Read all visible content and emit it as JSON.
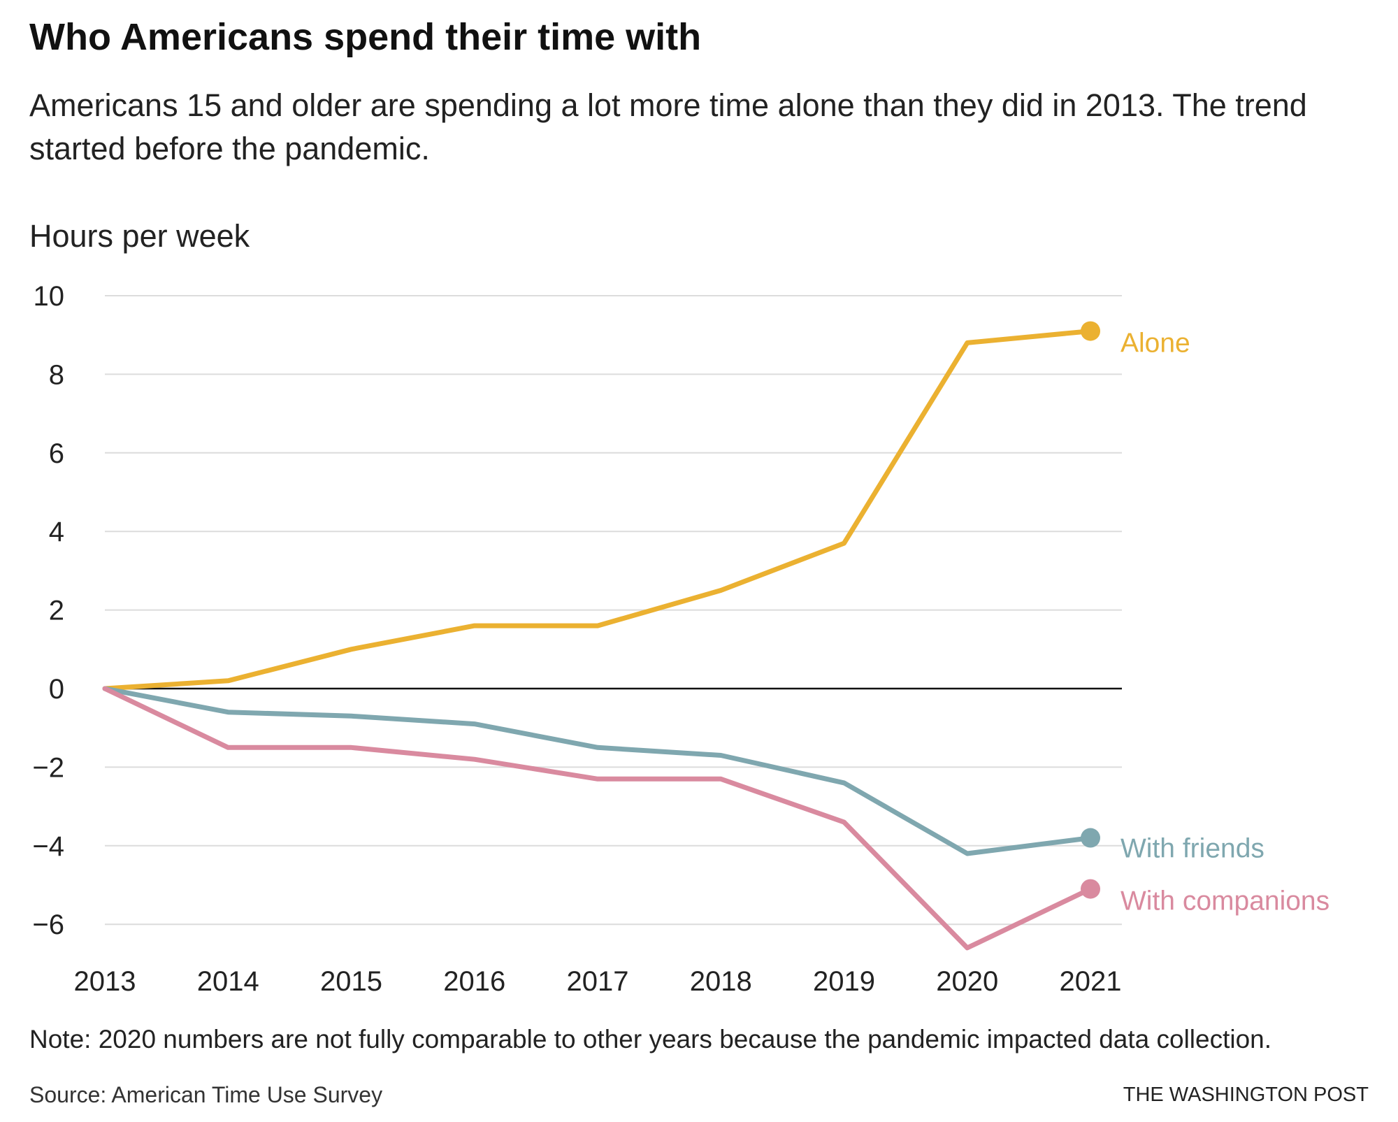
{
  "header": {
    "title": "Who Americans spend their time with",
    "subtitle": "Americans 15 and older are spending a lot more time alone than they did in 2013. The trend started before the pandemic."
  },
  "footer": {
    "note": "Note: 2020 numbers are not fully comparable to other years because the pandemic impacted data collection.",
    "source": "Source: American Time Use Survey",
    "credit": "THE WASHINGTON POST"
  },
  "chart_data": {
    "type": "line",
    "title": "Who Americans spend their time with",
    "subtitle": "Americans 15 and older are spending a lot more time alone than they did in 2013. The trend started before the pandemic.",
    "xlabel": "",
    "ylabel": "Hours per week",
    "x": [
      2013,
      2014,
      2015,
      2016,
      2017,
      2018,
      2019,
      2020,
      2021
    ],
    "ylim": [
      -6.5,
      10
    ],
    "yticks": [
      10,
      8,
      6,
      4,
      2,
      0,
      -2,
      -4,
      -6
    ],
    "ytick_labels": [
      "10",
      "8",
      "6",
      "4",
      "2",
      "0",
      "−2",
      "−4",
      "−6"
    ],
    "grid": true,
    "legend": "direct labels at line ends (right)",
    "series": [
      {
        "name": "Alone",
        "color": "#ebb131",
        "values": [
          0,
          0.2,
          1.0,
          1.6,
          1.6,
          2.5,
          3.7,
          8.8,
          9.1
        ]
      },
      {
        "name": "With friends",
        "color": "#7fa7af",
        "values": [
          0,
          -0.6,
          -0.7,
          -0.9,
          -1.5,
          -1.7,
          -2.4,
          -4.2,
          -3.8
        ]
      },
      {
        "name": "With companions",
        "color": "#d98a9f",
        "values": [
          0,
          -1.5,
          -1.5,
          -1.8,
          -2.3,
          -2.3,
          -3.4,
          -6.6,
          -5.1
        ]
      }
    ],
    "annotations": [
      "Note: 2020 numbers are not fully comparable to other years because the pandemic impacted data collection."
    ]
  }
}
